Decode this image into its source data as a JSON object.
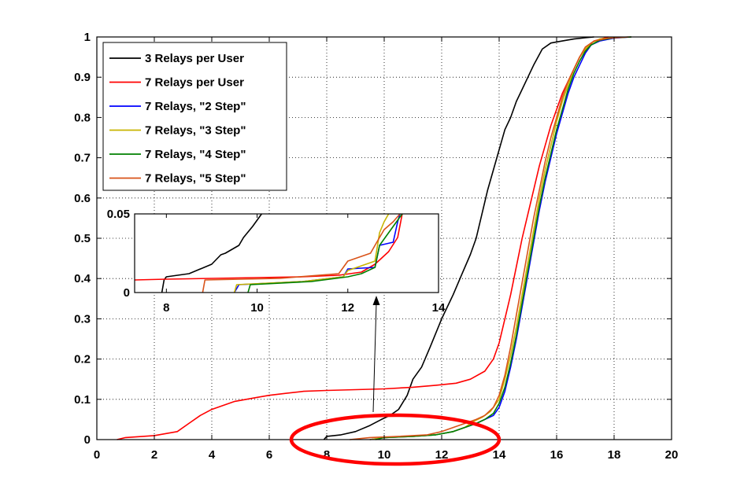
{
  "chart_data": {
    "type": "line",
    "title": "",
    "xlabel": "",
    "ylabel": "",
    "xlim": [
      0,
      20
    ],
    "ylim": [
      0,
      1
    ],
    "xticks": [
      "0",
      "2",
      "4",
      "6",
      "8",
      "10",
      "12",
      "14",
      "16",
      "18",
      "20"
    ],
    "yticks": [
      "0",
      "0.1",
      "0.2",
      "0.3",
      "0.4",
      "0.5",
      "0.6",
      "0.7",
      "0.8",
      "0.9",
      "1"
    ],
    "grid": true,
    "legend_position": "top-left",
    "series": [
      {
        "name": "3 Relays per User",
        "color": "#000000",
        "x": [
          7.9,
          8.0,
          8.5,
          9.0,
          9.5,
          9.9,
          10.2,
          10.5,
          10.8,
          11.0,
          11.3,
          11.6,
          12.0,
          12.4,
          12.7,
          13.0,
          13.2,
          13.4,
          13.6,
          13.8,
          14.0,
          14.2,
          14.4,
          14.6,
          14.8,
          15.0,
          15.2,
          15.5,
          15.8,
          16.2,
          16.6,
          17.0,
          17.3
        ],
        "y": [
          0.0,
          0.008,
          0.012,
          0.02,
          0.035,
          0.05,
          0.06,
          0.075,
          0.11,
          0.15,
          0.18,
          0.23,
          0.3,
          0.36,
          0.41,
          0.46,
          0.5,
          0.56,
          0.62,
          0.67,
          0.72,
          0.77,
          0.8,
          0.84,
          0.87,
          0.9,
          0.93,
          0.97,
          0.985,
          0.99,
          0.995,
          0.998,
          1.0
        ]
      },
      {
        "name": "7 Relays per User",
        "color": "#ff0000",
        "x": [
          0.7,
          1.0,
          2.0,
          2.8,
          3.2,
          3.6,
          4.0,
          4.4,
          4.8,
          5.2,
          5.6,
          6.0,
          6.6,
          7.2,
          8.0,
          9.0,
          10.0,
          11.0,
          11.8,
          12.5,
          13.0,
          13.5,
          13.8,
          14.0,
          14.2,
          14.4,
          14.6,
          14.8,
          15.0,
          15.2,
          15.4,
          15.6,
          15.8,
          16.0,
          16.2,
          16.4,
          16.6,
          16.8,
          17.0,
          17.3,
          17.8
        ],
        "y": [
          0.0,
          0.005,
          0.01,
          0.02,
          0.04,
          0.06,
          0.075,
          0.085,
          0.095,
          0.1,
          0.105,
          0.11,
          0.115,
          0.12,
          0.122,
          0.124,
          0.126,
          0.13,
          0.135,
          0.14,
          0.15,
          0.17,
          0.2,
          0.24,
          0.3,
          0.36,
          0.43,
          0.5,
          0.56,
          0.62,
          0.68,
          0.73,
          0.78,
          0.82,
          0.86,
          0.89,
          0.92,
          0.95,
          0.97,
          0.99,
          1.0
        ]
      },
      {
        "name": "7 Relays, \"2 Step\"",
        "color": "#0000ff",
        "x": [
          9.5,
          10.0,
          11.0,
          11.8,
          12.4,
          12.8,
          13.2,
          13.5,
          13.8,
          14.0,
          14.2,
          14.4,
          14.6,
          14.8,
          15.0,
          15.2,
          15.4,
          15.6,
          15.8,
          16.0,
          16.2,
          16.4,
          16.6,
          16.8,
          17.0,
          17.2,
          17.5,
          18.0,
          18.6
        ],
        "y": [
          0.0,
          0.005,
          0.008,
          0.012,
          0.02,
          0.03,
          0.04,
          0.05,
          0.06,
          0.08,
          0.12,
          0.18,
          0.25,
          0.33,
          0.41,
          0.49,
          0.57,
          0.64,
          0.7,
          0.76,
          0.81,
          0.86,
          0.9,
          0.93,
          0.96,
          0.98,
          0.99,
          0.997,
          1.0
        ]
      },
      {
        "name": "7 Relays, \"3 Step\"",
        "color": "#c8b400",
        "x": [
          9.5,
          10.0,
          11.0,
          11.8,
          12.4,
          12.8,
          13.1,
          13.4,
          13.7,
          14.0,
          14.2,
          14.4,
          14.6,
          14.8,
          15.0,
          15.2,
          15.4,
          15.6,
          15.8,
          16.0,
          16.2,
          16.4,
          16.6,
          16.8,
          17.0,
          17.2,
          17.5,
          18.0,
          18.6
        ],
        "y": [
          0.0,
          0.005,
          0.008,
          0.012,
          0.02,
          0.03,
          0.045,
          0.055,
          0.07,
          0.1,
          0.15,
          0.21,
          0.28,
          0.36,
          0.44,
          0.52,
          0.6,
          0.67,
          0.73,
          0.79,
          0.84,
          0.88,
          0.92,
          0.95,
          0.97,
          0.985,
          0.995,
          0.998,
          1.0
        ]
      },
      {
        "name": "7 Relays, \"4 Step\"",
        "color": "#008000",
        "x": [
          9.7,
          10.0,
          11.0,
          11.8,
          12.4,
          12.8,
          13.2,
          13.5,
          13.8,
          14.0,
          14.2,
          14.4,
          14.6,
          14.8,
          15.0,
          15.2,
          15.4,
          15.6,
          15.8,
          16.0,
          16.2,
          16.4,
          16.6,
          16.8,
          17.0,
          17.2,
          17.5,
          18.0,
          18.6
        ],
        "y": [
          0.0,
          0.005,
          0.008,
          0.012,
          0.02,
          0.03,
          0.04,
          0.05,
          0.065,
          0.09,
          0.13,
          0.19,
          0.26,
          0.34,
          0.42,
          0.5,
          0.58,
          0.65,
          0.71,
          0.77,
          0.82,
          0.87,
          0.91,
          0.94,
          0.965,
          0.98,
          0.992,
          0.998,
          1.0
        ]
      },
      {
        "name": "7 Relays, \"5 Step\"",
        "color": "#d95319",
        "x": [
          8.8,
          9.5,
          10.5,
          11.5,
          12.0,
          12.4,
          12.8,
          13.2,
          13.5,
          13.8,
          14.0,
          14.2,
          14.4,
          14.6,
          14.8,
          15.0,
          15.2,
          15.4,
          15.6,
          15.8,
          16.0,
          16.2,
          16.4,
          16.6,
          16.8,
          17.0,
          17.3,
          17.8,
          18.5
        ],
        "y": [
          0.0,
          0.005,
          0.008,
          0.012,
          0.02,
          0.03,
          0.04,
          0.05,
          0.06,
          0.08,
          0.11,
          0.16,
          0.23,
          0.31,
          0.39,
          0.47,
          0.55,
          0.62,
          0.69,
          0.75,
          0.8,
          0.85,
          0.89,
          0.92,
          0.95,
          0.975,
          0.99,
          0.997,
          1.0
        ]
      }
    ],
    "inset": {
      "xlim": [
        7.3,
        14
      ],
      "ylim": [
        0,
        0.05
      ],
      "xticks": [
        "8",
        "10",
        "12",
        "14"
      ],
      "yticks": [
        "0",
        "0.05"
      ],
      "series": [
        {
          "color": "#000000",
          "x": [
            7.9,
            7.95,
            8.0,
            8.5,
            9.0,
            9.2,
            9.3,
            9.6,
            9.7,
            9.9,
            10.1
          ],
          "y": [
            0.0,
            0.008,
            0.01,
            0.012,
            0.018,
            0.024,
            0.025,
            0.03,
            0.035,
            0.042,
            0.05
          ]
        },
        {
          "color": "#ff0000",
          "x": [
            7.3,
            8.0,
            9.0,
            10.0,
            11.0,
            11.8,
            12.3,
            12.6,
            12.9,
            13.1,
            13.2
          ],
          "y": [
            0.008,
            0.0085,
            0.009,
            0.0095,
            0.01,
            0.011,
            0.013,
            0.018,
            0.026,
            0.035,
            0.05
          ]
        },
        {
          "color": "#0000ff",
          "x": [
            9.5,
            9.6,
            11.0,
            11.9,
            12.0,
            12.6,
            12.7,
            13.0,
            13.1,
            13.15
          ],
          "y": [
            0.0,
            0.005,
            0.007,
            0.01,
            0.015,
            0.016,
            0.03,
            0.032,
            0.045,
            0.05
          ]
        },
        {
          "color": "#c8b400",
          "x": [
            9.5,
            9.55,
            11.0,
            11.9,
            12.0,
            12.6,
            12.7,
            12.8,
            12.9
          ],
          "y": [
            0.0,
            0.005,
            0.007,
            0.01,
            0.014,
            0.02,
            0.038,
            0.045,
            0.05
          ]
        },
        {
          "color": "#008000",
          "x": [
            9.8,
            9.85,
            11.2,
            12.0,
            12.3,
            12.6,
            12.7,
            12.9,
            13.1,
            13.2
          ],
          "y": [
            0.0,
            0.005,
            0.007,
            0.01,
            0.012,
            0.016,
            0.03,
            0.038,
            0.046,
            0.05
          ]
        },
        {
          "color": "#d95319",
          "x": [
            8.8,
            8.85,
            10.5,
            11.8,
            12.0,
            12.5,
            12.6,
            12.8,
            13.0,
            13.15
          ],
          "y": [
            0.0,
            0.008,
            0.009,
            0.012,
            0.02,
            0.025,
            0.03,
            0.04,
            0.045,
            0.05
          ]
        }
      ]
    }
  }
}
